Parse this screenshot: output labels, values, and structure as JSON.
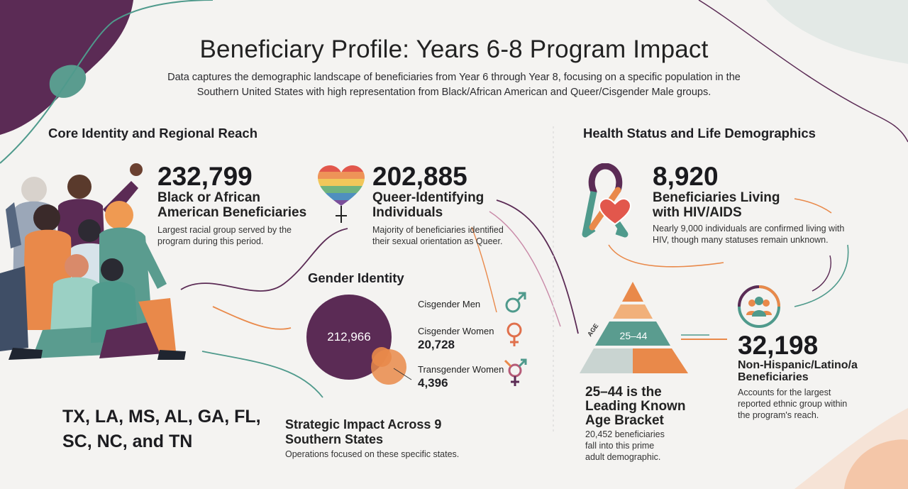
{
  "header": {
    "title": "Beneficiary Profile: Years 6-8 Program Impact",
    "subtitle": "Data captures the demographic landscape of beneficiaries from Year 6 through Year 8, focusing on a specific population in the Southern United States with high representation from Black/African American and Queer/Cisgender Male groups."
  },
  "left_section": {
    "heading": "Core Identity and Regional Reach",
    "black_stat": {
      "value": "232,799",
      "label": "Black or African American Beneficiaries",
      "description": "Largest racial group served by the program during this period."
    },
    "queer_stat": {
      "value": "202,885",
      "label": "Queer-Identifying Individuals",
      "description": "Majority of beneficiaries identified their sexual orientation as Queer."
    },
    "gender": {
      "heading": "Gender Identity",
      "circle_value": "212,966",
      "items": [
        {
          "label": "Cisgender Men",
          "value": ""
        },
        {
          "label": "Cisgender Women",
          "value": "20,728"
        },
        {
          "label": "Transgender Women",
          "value": "4,396"
        }
      ]
    },
    "states": "TX, LA, MS, AL, GA, FL, SC, NC, and TN",
    "strategic": {
      "heading": "Strategic Impact Across 9 Southern States",
      "description": "Operations focused on these specific states."
    }
  },
  "right_section": {
    "heading": "Health Status and Life Demographics",
    "hiv_stat": {
      "value": "8,920",
      "label": "Beneficiaries Living with HIV/AIDS",
      "description": "Nearly 9,000 individuals are confirmed living with HIV, though many statuses remain unknown."
    },
    "age": {
      "tag": "AGE",
      "bracket": "25–44",
      "heading": "25–44 is the Leading Known Age Bracket",
      "description": "20,452 beneficiaries fall into this prime adult demographic."
    },
    "ethnic_stat": {
      "value": "32,198",
      "label": "Non-Hispanic/Latino/a Beneficiaries",
      "description": "Accounts for the largest reported ethnic group within the program's reach."
    }
  },
  "colors": {
    "purple": "#5b2b55",
    "teal": "#4f9a8c",
    "orange": "#e9894a",
    "peach": "#f1b07a",
    "background": "#f4f3f1"
  },
  "icons": [
    "rainbow-heart-icon",
    "awareness-ribbon-icon",
    "male-symbol-icon",
    "female-symbol-icon",
    "transgender-symbol-icon",
    "people-group-icon"
  ]
}
